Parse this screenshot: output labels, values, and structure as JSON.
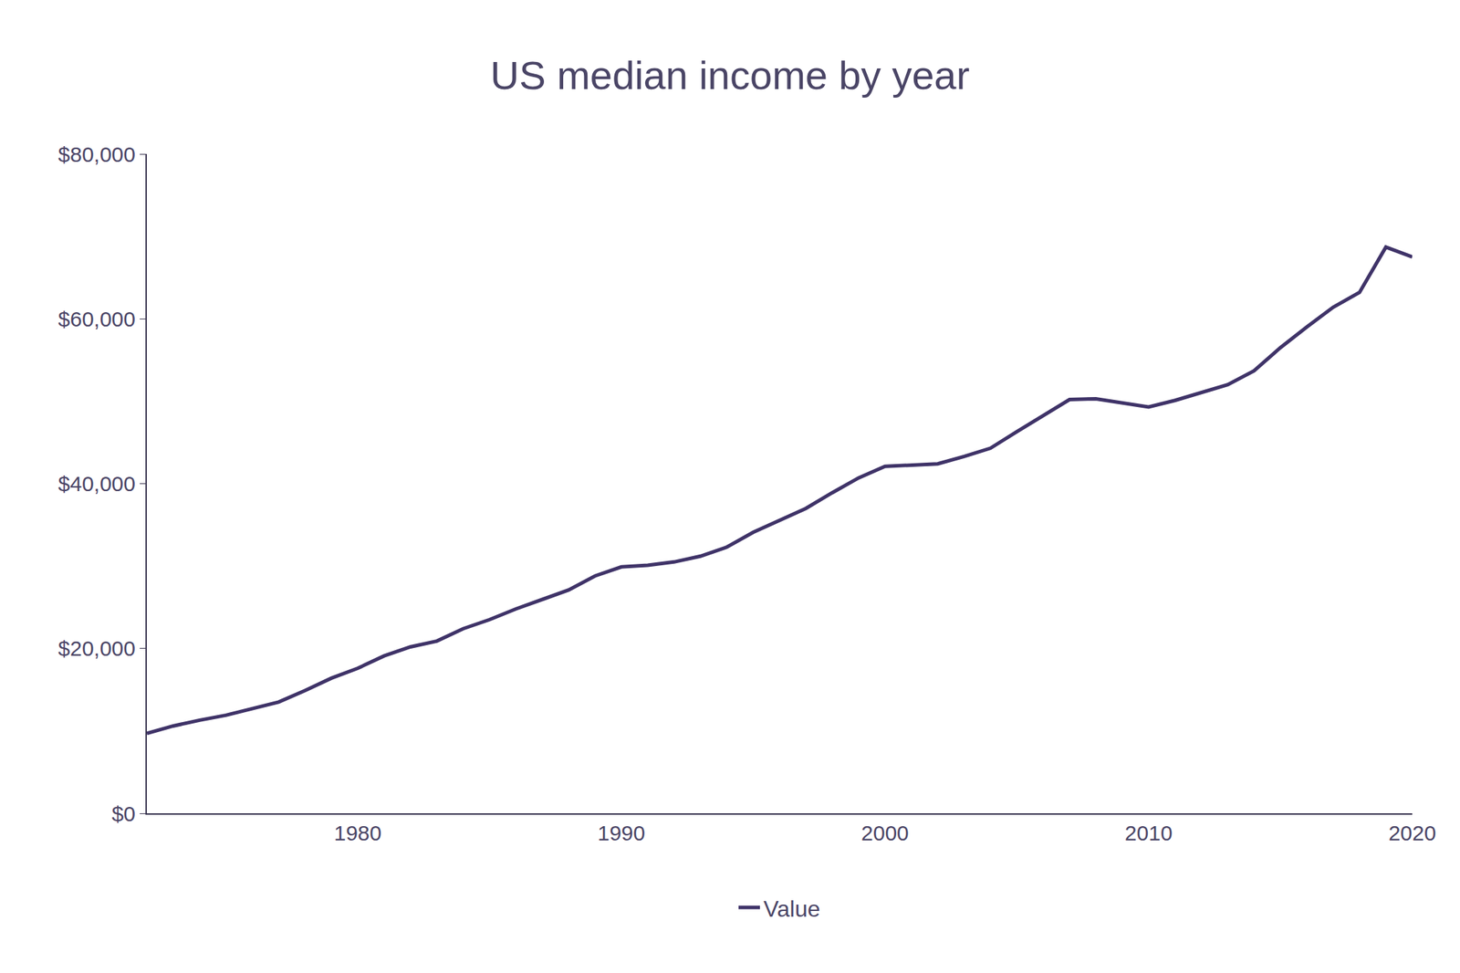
{
  "chart_data": {
    "type": "line",
    "title": "US median income by year",
    "x": [
      1972,
      1973,
      1974,
      1975,
      1976,
      1977,
      1978,
      1979,
      1980,
      1981,
      1982,
      1983,
      1984,
      1985,
      1986,
      1987,
      1988,
      1989,
      1990,
      1991,
      1992,
      1993,
      1994,
      1995,
      1996,
      1997,
      1998,
      1999,
      2000,
      2001,
      2002,
      2003,
      2004,
      2005,
      2006,
      2007,
      2008,
      2009,
      2010,
      2011,
      2012,
      2013,
      2014,
      2015,
      2016,
      2017,
      2018,
      2019,
      2020
    ],
    "series": [
      {
        "name": "Value",
        "color": "#3f3368",
        "values": [
          9700,
          10600,
          11300,
          11900,
          12700,
          13500,
          14900,
          16400,
          17600,
          19100,
          20200,
          20900,
          22400,
          23500,
          24800,
          25900,
          27100,
          28800,
          29900,
          30100,
          30500,
          31200,
          32300,
          34100,
          35500,
          37000,
          38900,
          40700,
          42100,
          42200,
          42400,
          43300,
          44300,
          46300,
          48200,
          50200,
          50300,
          49800,
          49300,
          50100,
          51100,
          52000,
          53700,
          56500,
          59000,
          61400,
          63200,
          68700,
          67500
        ]
      }
    ],
    "xlim": [
      1972,
      2020
    ],
    "xticks": [
      1980,
      1990,
      2000,
      2010,
      2020
    ],
    "ylim": [
      0,
      80000
    ],
    "yticks": [
      {
        "value": 0,
        "label": "$0"
      },
      {
        "value": 20000,
        "label": "$20,000"
      },
      {
        "value": 40000,
        "label": "$40,000"
      },
      {
        "value": 60000,
        "label": "$60,000"
      },
      {
        "value": 80000,
        "label": "$80,000"
      }
    ],
    "grid": false,
    "legend": "bottom"
  }
}
